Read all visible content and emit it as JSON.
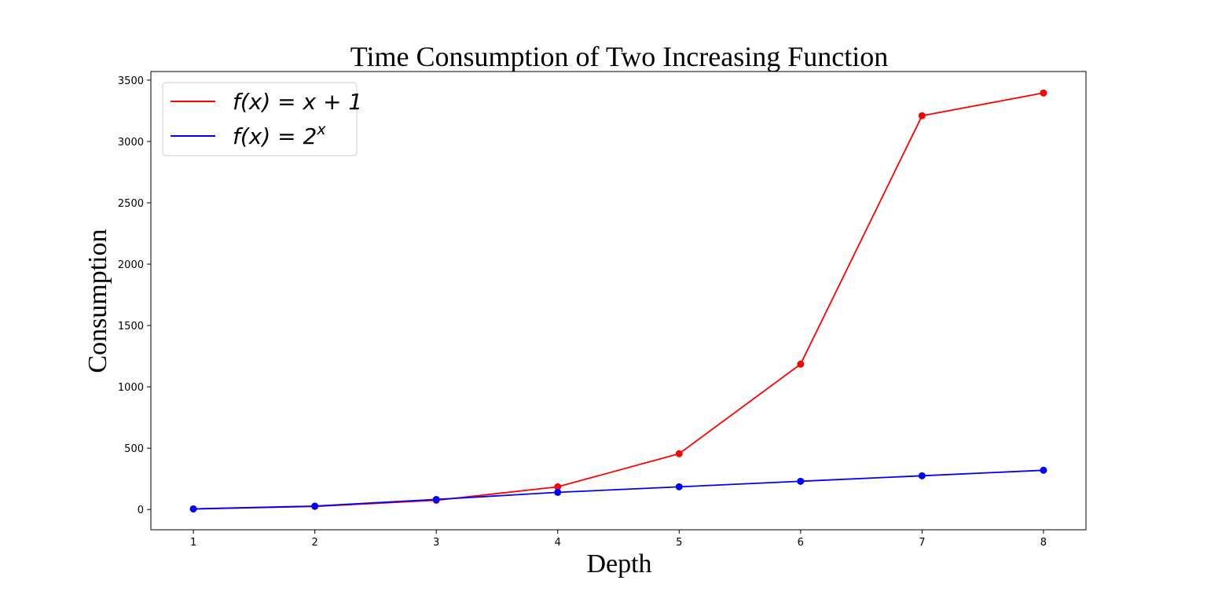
{
  "chart_data": {
    "type": "line",
    "title": "Time Consumption of Two Increasing Function",
    "xlabel": "Depth",
    "ylabel": "Consumption",
    "x": [
      1,
      2,
      3,
      4,
      5,
      6,
      7,
      8
    ],
    "xlim": [
      0.65,
      8.35
    ],
    "ylim": [
      -165,
      3570
    ],
    "xticks": [
      1,
      2,
      3,
      4,
      5,
      6,
      7,
      8
    ],
    "yticks": [
      0,
      500,
      1000,
      1500,
      2000,
      2500,
      3000,
      3500
    ],
    "grid": false,
    "legend_position": "top-left",
    "series": [
      {
        "name": "f(x) = x + 1",
        "color": "#ff0000",
        "marker": "circle",
        "values": [
          5,
          25,
          75,
          185,
          455,
          1185,
          3210,
          3395
        ]
      },
      {
        "name": "f(x) = 2^x",
        "color": "#0000ff",
        "marker": "circle",
        "values": [
          5,
          28,
          82,
          140,
          185,
          230,
          275,
          320
        ]
      }
    ],
    "legend": {
      "entries": [
        {
          "base": "f(x) = x + 1",
          "sup": ""
        },
        {
          "base": "f(x) = 2",
          "sup": "x"
        }
      ]
    }
  }
}
